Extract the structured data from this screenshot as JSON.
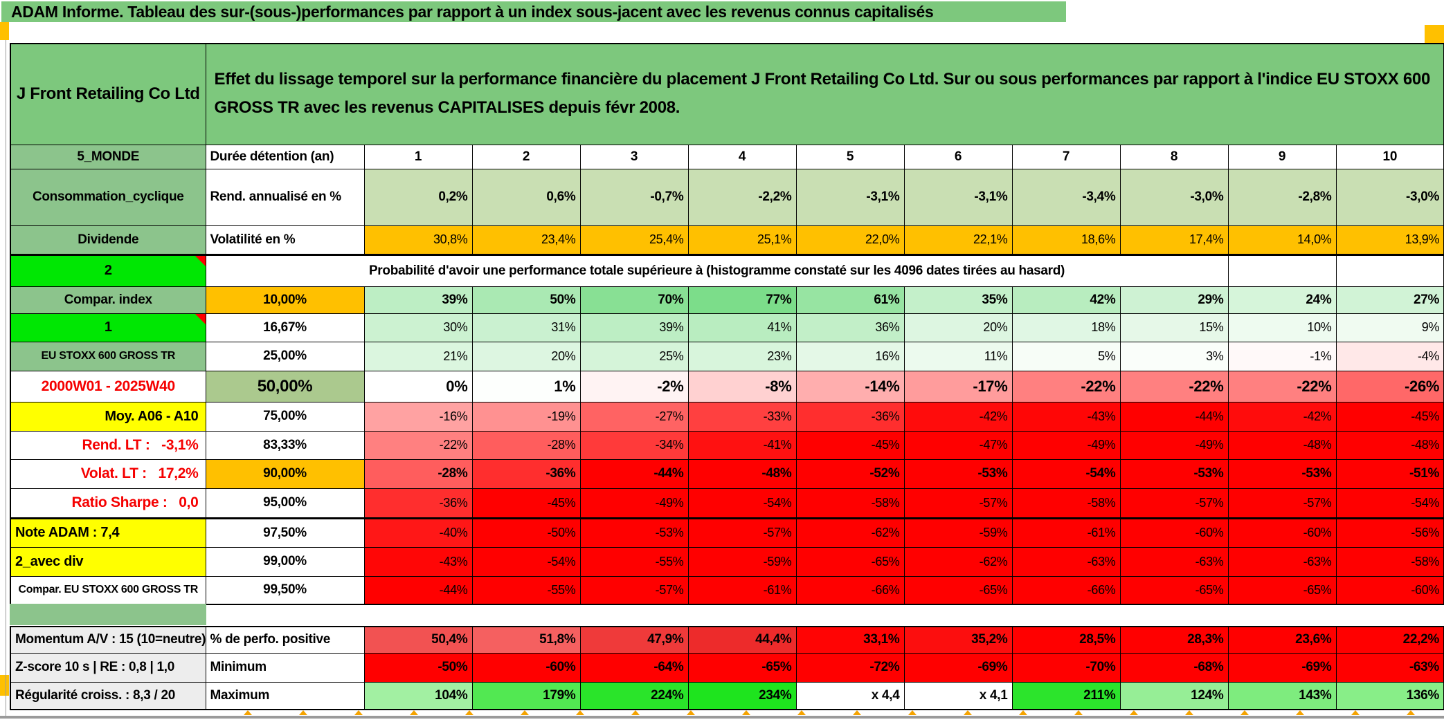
{
  "banner": {
    "text": "ADAM Informe. Tableau des sur-(sous-)performances par rapport à un index sous-jacent avec les revenus connus capitalisés"
  },
  "colors": {
    "banner_green": "#7DC87D",
    "label_green": "#8CC48C",
    "bright_green": "#00E703",
    "threshold_orange": "#FFC000",
    "note_yellow": "#FFFF00",
    "olive_50pct": "#ABC98E",
    "annualized_row_bg": "#C9DFB3",
    "full_red": "#FF0000",
    "marker_orange": "#FFC000"
  },
  "table": {
    "company": "J Front Retailing Co Ltd",
    "title": "Effet du lissage temporel sur la performance financière du placement J Front Retailing Co Ltd. Sur ou sous performances par rapport à l'indice EU STOXX 600 GROSS TR avec les revenus CAPITALISES depuis févr 2008.",
    "col_headers": [
      "1",
      "2",
      "3",
      "4",
      "5",
      "6",
      "7",
      "8",
      "9",
      "10"
    ],
    "rows_top": [
      {
        "label": "5_MONDE",
        "sub": "Durée détention (an)"
      },
      {
        "label": "Consommation_cyclique",
        "sub": "Rend. annualisé en %",
        "values": [
          "0,2%",
          "0,6%",
          "-0,7%",
          "-2,2%",
          "-3,1%",
          "-3,1%",
          "-3,4%",
          "-3,0%",
          "-2,8%",
          "-3,0%"
        ],
        "cell_bg": "#C9DFB3",
        "bold": true
      },
      {
        "label": "Dividende",
        "sub": "Volatilité en %",
        "values": [
          "30,8%",
          "23,4%",
          "25,4%",
          "25,1%",
          "22,0%",
          "22,1%",
          "18,6%",
          "17,4%",
          "14,0%",
          "13,9%"
        ],
        "cell_bg": "#FFC000",
        "bold": false
      }
    ],
    "prob_header": {
      "label": "2",
      "text": "Probabilité d'avoir une performance totale supérieure à (histogramme constaté sur les 4096 dates tirées au hasard)"
    },
    "matrix_rows": [
      {
        "label": "Compar. index",
        "label_cls": "lab-green",
        "sub": "10,00%",
        "sub_cls": "s s-orange",
        "bold": true,
        "values": [
          39,
          50,
          70,
          77,
          61,
          35,
          42,
          29,
          24,
          27
        ]
      },
      {
        "label": "1",
        "label_cls": "lab-bright",
        "marker": true,
        "sub": "16,67%",
        "sub_cls": "s",
        "values": [
          30,
          31,
          39,
          41,
          36,
          20,
          18,
          15,
          10,
          9
        ]
      },
      {
        "label": "EU STOXX 600 GROSS TR",
        "label_cls": "lab-green sm",
        "sub": "25,00%",
        "sub_cls": "s",
        "values": [
          21,
          20,
          25,
          23,
          16,
          11,
          5,
          3,
          -1,
          -4
        ]
      },
      {
        "label": "2000W01 - 2025W40",
        "label_cls": "lab-red",
        "sub": "50,00%",
        "sub_cls": "s s-olive",
        "bold": true,
        "big": true,
        "values": [
          0,
          1,
          -2,
          -8,
          -14,
          -17,
          -22,
          -22,
          -22,
          -26
        ]
      },
      {
        "label": "Moy. A06 - A10",
        "label_cls": "lab-yellow right",
        "sub": "75,00%",
        "sub_cls": "s",
        "values": [
          -16,
          -19,
          -27,
          -33,
          -36,
          -42,
          -43,
          -44,
          -42,
          -45
        ]
      },
      {
        "label": "Rend. LT :   -3,1%",
        "label_cls": "lab-red right",
        "sub": "83,33%",
        "sub_cls": "s",
        "values": [
          -22,
          -28,
          -34,
          -41,
          -45,
          -47,
          -49,
          -49,
          -48,
          -48
        ]
      },
      {
        "label": "Volat. LT :   17,2%",
        "label_cls": "lab-red right",
        "sub": "90,00%",
        "sub_cls": "s s-orange",
        "bold": true,
        "values": [
          -28,
          -36,
          -44,
          -48,
          -52,
          -53,
          -54,
          -53,
          -53,
          -51
        ]
      },
      {
        "label": "Ratio Sharpe :   0,0",
        "label_cls": "lab-red right",
        "sub": "95,00%",
        "sub_cls": "s",
        "thick_bottom": true,
        "values": [
          -36,
          -45,
          -49,
          -54,
          -58,
          -57,
          -58,
          -57,
          -57,
          -54
        ]
      },
      {
        "label": "Note ADAM : 7,4",
        "label_cls": "lab-yellow left",
        "sub": "97,50%",
        "sub_cls": "s",
        "values": [
          -40,
          -50,
          -53,
          -57,
          -62,
          -59,
          -61,
          -60,
          -60,
          -56
        ]
      },
      {
        "label": "2_avec div",
        "label_cls": "lab-yellow left",
        "sub": "99,00%",
        "sub_cls": "s",
        "values": [
          -43,
          -54,
          -55,
          -59,
          -65,
          -62,
          -63,
          -63,
          -63,
          -58
        ]
      },
      {
        "label": "Compar. EU STOXX 600 GROSS TR",
        "label_cls": "lab-white sm",
        "sub": "99,50%",
        "sub_cls": "s",
        "values": [
          -44,
          -55,
          -57,
          -61,
          -66,
          -65,
          -66,
          -65,
          -65,
          -60
        ]
      }
    ],
    "bottom_rows": [
      {
        "label": "Momentum A/V : 15 (10=neutre)",
        "sub": "% de perfo. positive",
        "values": [
          "50,4%",
          "51,8%",
          "47,9%",
          "44,4%",
          "33,1%",
          "35,2%",
          "28,5%",
          "28,3%",
          "23,6%",
          "22,2%"
        ],
        "bg": [
          "#F25252",
          "#F56060",
          "#EF3A3A",
          "#ED2B2B",
          "#FF0404",
          "#FC0E0E",
          "#FF0000",
          "#FF0000",
          "#FF0000",
          "#FF0000"
        ]
      },
      {
        "label": "Z-score 10 s | RE : 0,8 | 1,0",
        "sub": "Minimum",
        "values": [
          "-50%",
          "-60%",
          "-64%",
          "-65%",
          "-72%",
          "-69%",
          "-70%",
          "-68%",
          "-69%",
          "-63%"
        ],
        "bg": [
          "#FF0000",
          "#FF0000",
          "#FF0000",
          "#FF0000",
          "#FF0000",
          "#FF0000",
          "#FF0000",
          "#FF0000",
          "#FF0000",
          "#FF0000"
        ]
      },
      {
        "label": "Régularité croiss. : 8,3 / 20",
        "sub": "Maximum",
        "values": [
          "104%",
          "179%",
          "224%",
          "234%",
          "x 4,4",
          "x 4,1",
          "211%",
          "124%",
          "143%",
          "136%"
        ],
        "bg": [
          "#A2F0A2",
          "#52E852",
          "#2AE42A",
          "#1EE41E",
          "#FFFFFF",
          "#FFFFFF",
          "#2CE42C",
          "#96EE96",
          "#7EEC7E",
          "#88EE88"
        ]
      }
    ]
  }
}
